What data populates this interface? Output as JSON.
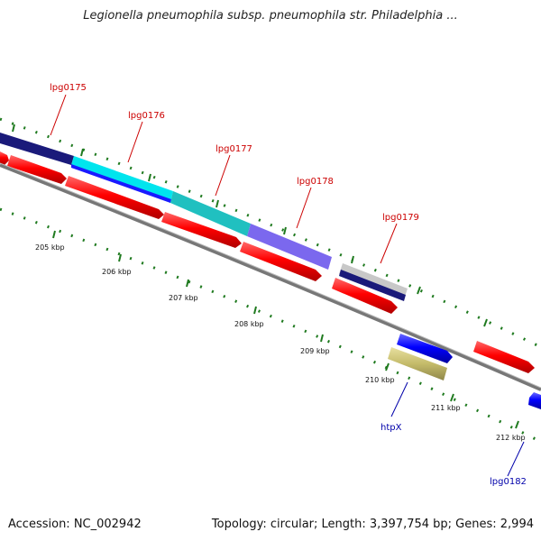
{
  "title": "Legionella pneumophila subsp. pneumophila str. Philadelphia ...",
  "footer": {
    "accession": "Accession: NC_002942",
    "summary": "Topology: circular; Length: 3,397,754 bp; Genes: 2,994"
  },
  "colors": {
    "backbone": "#8a8a8a",
    "tick": "#1f7a1f",
    "forward_gene": "#ff0000",
    "reverse_gene": "#0000ff",
    "label_red": "#cc0000",
    "label_blue": "#0000aa"
  },
  "ticks": [
    "205 kbp",
    "206 kbp",
    "207 kbp",
    "208 kbp",
    "209 kbp",
    "210 kbp",
    "211 kbp",
    "212 kbp"
  ],
  "gene_labels": [
    {
      "name": "lpg0175",
      "color": "#cc0000"
    },
    {
      "name": "lpg0176",
      "color": "#cc0000"
    },
    {
      "name": "lpg0177",
      "color": "#cc0000"
    },
    {
      "name": "lpg0178",
      "color": "#cc0000"
    },
    {
      "name": "lpg0179",
      "color": "#cc0000"
    },
    {
      "name": "htpX",
      "color": "#0000aa"
    },
    {
      "name": "lpg0182",
      "color": "#0000aa"
    }
  ]
}
